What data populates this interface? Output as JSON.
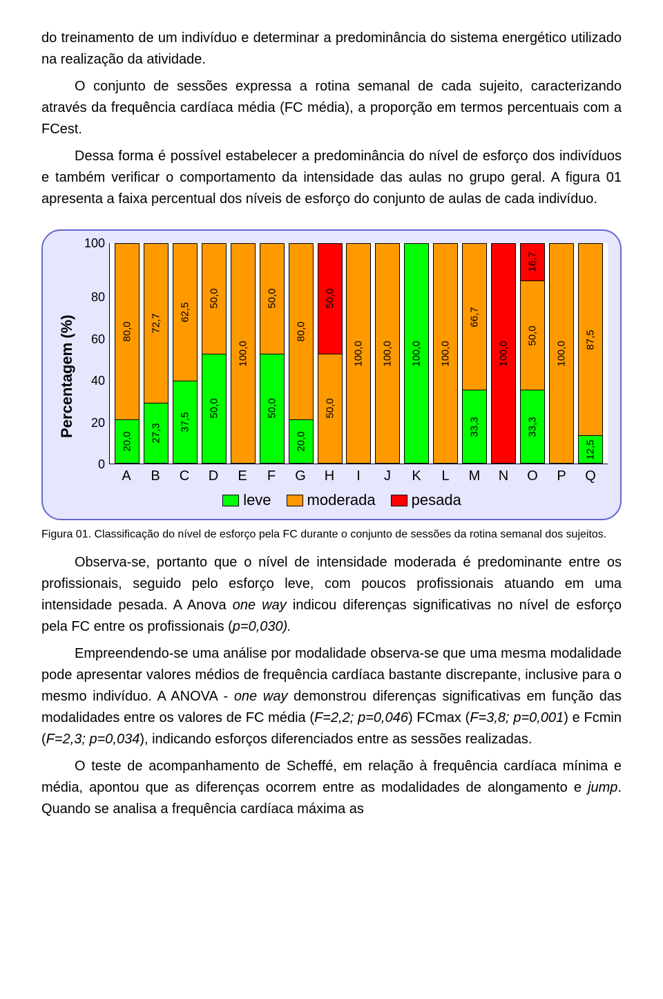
{
  "para1": "do treinamento de um indivíduo e determinar a predominância do sistema energético utilizado na realização da atividade.",
  "para2": "O conjunto de sessões expressa a rotina semanal de cada sujeito, caracterizando através da frequência cardíaca média (FC média), a proporção em termos percentuais com a FCest.",
  "para3": "Dessa forma é possível estabelecer a predominância do nível de esforço dos indivíduos e também verificar o comportamento da intensidade das aulas no grupo geral. A figura 01 apresenta a faixa percentual dos níveis de esforço do conjunto de aulas de cada indivíduo.",
  "chart": {
    "type": "stacked-bar",
    "ylabel": "Percentagem (%)",
    "yticks": [
      "100",
      "80",
      "60",
      "40",
      "20",
      "0"
    ],
    "ylim": [
      0,
      100
    ],
    "background": "#e6e6ff",
    "frame_border": "#6666cc",
    "plot_bg": "#ffffff",
    "axis_color": "#000000",
    "categories": [
      "A",
      "B",
      "C",
      "D",
      "E",
      "F",
      "G",
      "H",
      "I",
      "J",
      "K",
      "L",
      "M",
      "N",
      "O",
      "P",
      "Q"
    ],
    "series": {
      "leve": {
        "color": "#00ff00",
        "label": "leve"
      },
      "moderada": {
        "color": "#ff9900",
        "label": "moderada"
      },
      "pesada": {
        "color": "#ff0000",
        "label": "pesada"
      }
    },
    "bars": [
      {
        "cat": "A",
        "segs": [
          {
            "k": "moderada",
            "v": 80.0,
            "lbl": "80,0"
          },
          {
            "k": "leve",
            "v": 20.0,
            "lbl": "20,0"
          }
        ]
      },
      {
        "cat": "B",
        "segs": [
          {
            "k": "moderada",
            "v": 72.7,
            "lbl": "72,7"
          },
          {
            "k": "leve",
            "v": 27.3,
            "lbl": "27,3"
          }
        ]
      },
      {
        "cat": "C",
        "segs": [
          {
            "k": "moderada",
            "v": 62.5,
            "lbl": "62,5"
          },
          {
            "k": "leve",
            "v": 37.5,
            "lbl": "37,5"
          }
        ]
      },
      {
        "cat": "D",
        "segs": [
          {
            "k": "moderada",
            "v": 50.0,
            "lbl": "50,0"
          },
          {
            "k": "leve",
            "v": 50.0,
            "lbl": "50,0"
          }
        ]
      },
      {
        "cat": "E",
        "segs": [
          {
            "k": "moderada",
            "v": 100.0,
            "lbl": "100,0"
          }
        ]
      },
      {
        "cat": "F",
        "segs": [
          {
            "k": "moderada",
            "v": 50.0,
            "lbl": "50,0"
          },
          {
            "k": "leve",
            "v": 50.0,
            "lbl": "50,0"
          }
        ]
      },
      {
        "cat": "G",
        "segs": [
          {
            "k": "moderada",
            "v": 80.0,
            "lbl": "80,0"
          },
          {
            "k": "leve",
            "v": 20.0,
            "lbl": "20,0"
          }
        ]
      },
      {
        "cat": "H",
        "segs": [
          {
            "k": "pesada",
            "v": 50.0,
            "lbl": "50,0"
          },
          {
            "k": "moderada",
            "v": 50.0,
            "lbl": "50,0"
          }
        ]
      },
      {
        "cat": "I",
        "segs": [
          {
            "k": "moderada",
            "v": 100.0,
            "lbl": "100,0"
          }
        ]
      },
      {
        "cat": "J",
        "segs": [
          {
            "k": "moderada",
            "v": 100.0,
            "lbl": "100,0"
          }
        ]
      },
      {
        "cat": "K",
        "segs": [
          {
            "k": "leve",
            "v": 100.0,
            "lbl": "100,0"
          }
        ]
      },
      {
        "cat": "L",
        "segs": [
          {
            "k": "moderada",
            "v": 100.0,
            "lbl": "100,0"
          }
        ]
      },
      {
        "cat": "M",
        "segs": [
          {
            "k": "moderada",
            "v": 66.7,
            "lbl": "66,7"
          },
          {
            "k": "leve",
            "v": 33.3,
            "lbl": "33,3"
          }
        ]
      },
      {
        "cat": "N",
        "segs": [
          {
            "k": "pesada",
            "v": 100.0,
            "lbl": "100,0"
          }
        ]
      },
      {
        "cat": "O",
        "segs": [
          {
            "k": "pesada",
            "v": 16.7,
            "lbl": "16,7"
          },
          {
            "k": "moderada",
            "v": 50.0,
            "lbl": "50,0"
          },
          {
            "k": "leve",
            "v": 33.3,
            "lbl": "33,3"
          }
        ]
      },
      {
        "cat": "P",
        "segs": [
          {
            "k": "moderada",
            "v": 100.0,
            "lbl": "100,0"
          }
        ]
      },
      {
        "cat": "Q",
        "segs": [
          {
            "k": "moderada",
            "v": 87.5,
            "lbl": "87,5"
          },
          {
            "k": "leve",
            "v": 12.5,
            "lbl": "12,5"
          }
        ]
      }
    ],
    "legend_order": [
      "leve",
      "moderada",
      "pesada"
    ]
  },
  "caption": "Figura 01. Classificação do nível de esforço pela FC durante o conjunto de sessões da rotina semanal dos sujeitos.",
  "para4_a": "Observa-se, portanto que o nível de intensidade moderada é predominante entre os profissionais, seguido pelo esforço leve, com poucos profissionais atuando em uma intensidade pesada. A Anova ",
  "para4_b": "one way",
  "para4_c": " indicou diferenças significativas no nível de esforço pela FC entre os profissionais (",
  "para4_d": "p=0,030).",
  "para5_a": "Empreendendo-se uma análise por modalidade observa-se que uma mesma modalidade pode apresentar valores médios de frequência cardíaca bastante discrepante, inclusive para o mesmo indivíduo. A ANOVA - ",
  "para5_b": "one way",
  "para5_c": " demonstrou diferenças significativas em função das modalidades entre os valores de FC média (",
  "para5_d": "F=2,2; p=0,046",
  "para5_e": ") FCmax (",
  "para5_f": "F=3,8; p=0,001",
  "para5_g": ") e Fcmin (",
  "para5_h": "F=2,3; p=0,034",
  "para5_i": "), indicando esforços diferenciados entre as sessões realizadas.",
  "para6_a": "O teste de acompanhamento de Scheffé, em relação à frequência cardíaca mínima e média, apontou que as diferenças ocorrem entre as modalidades de alongamento e ",
  "para6_b": "jump",
  "para6_c": ". Quando se analisa a frequência cardíaca máxima as"
}
